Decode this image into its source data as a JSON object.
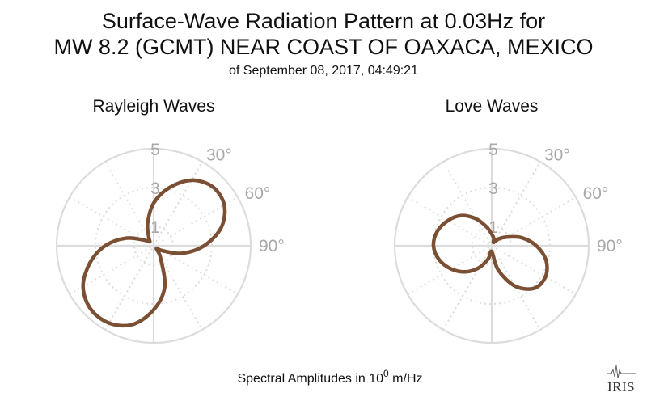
{
  "figure": {
    "title_line1": "Surface-Wave Radiation Pattern at 0.03Hz for",
    "title_line2": "MW 8.2 (GCMT) NEAR COAST OF OAXACA, MEXICO",
    "subtitle": "of September 08, 2017, 04:49:21",
    "footer_prefix": "Spectral Amplitudes in 10",
    "footer_exponent": "0",
    "footer_suffix": " m/Hz",
    "logo_text": "IRIS"
  },
  "chart_data": [
    {
      "type": "polar",
      "title": "Rayleigh Waves",
      "radial_ticks": [
        "1",
        "3",
        "5"
      ],
      "radial_tick_values": [
        1,
        3,
        5
      ],
      "rmax": 5,
      "angle_ticks": [
        "30°",
        "60°",
        "90°"
      ],
      "angle_tick_values": [
        30,
        60,
        90
      ],
      "grid": true,
      "series_color": "#7a4f33",
      "series": [
        {
          "theta": [
            0,
            15,
            30,
            45,
            60,
            75,
            90,
            105,
            120,
            135,
            150,
            165,
            180,
            195,
            210,
            225,
            240,
            255,
            270,
            285,
            300,
            315,
            330,
            345
          ],
          "r": [
            2.2,
            3.1,
            3.9,
            4.3,
            4.2,
            3.6,
            2.6,
            1.5,
            0.5,
            0.2,
            0.7,
            2.2,
            3.3,
            4.2,
            4.6,
            4.6,
            4.2,
            3.4,
            2.5,
            1.5,
            0.6,
            0.3,
            0.5,
            1.2
          ]
        }
      ]
    },
    {
      "type": "polar",
      "title": "Love Waves",
      "radial_ticks": [
        "1",
        "3",
        "5"
      ],
      "radial_tick_values": [
        1,
        3,
        5
      ],
      "rmax": 5,
      "angle_ticks": [
        "30°",
        "60°",
        "90°"
      ],
      "angle_tick_values": [
        30,
        60,
        90
      ],
      "grid": true,
      "series_color": "#7a4f33",
      "series": [
        {
          "theta": [
            0,
            15,
            30,
            45,
            60,
            75,
            90,
            105,
            120,
            135,
            150,
            165,
            180,
            195,
            210,
            225,
            240,
            255,
            270,
            285,
            300,
            315,
            330,
            345
          ],
          "r": [
            0.6,
            0.4,
            0.2,
            0.5,
            0.9,
            1.6,
            2.3,
            2.9,
            3.2,
            3.1,
            2.4,
            1.3,
            0.3,
            0.7,
            1.3,
            1.9,
            2.4,
            2.8,
            3.0,
            2.9,
            2.6,
            2.2,
            1.6,
            1.0
          ]
        }
      ]
    }
  ]
}
